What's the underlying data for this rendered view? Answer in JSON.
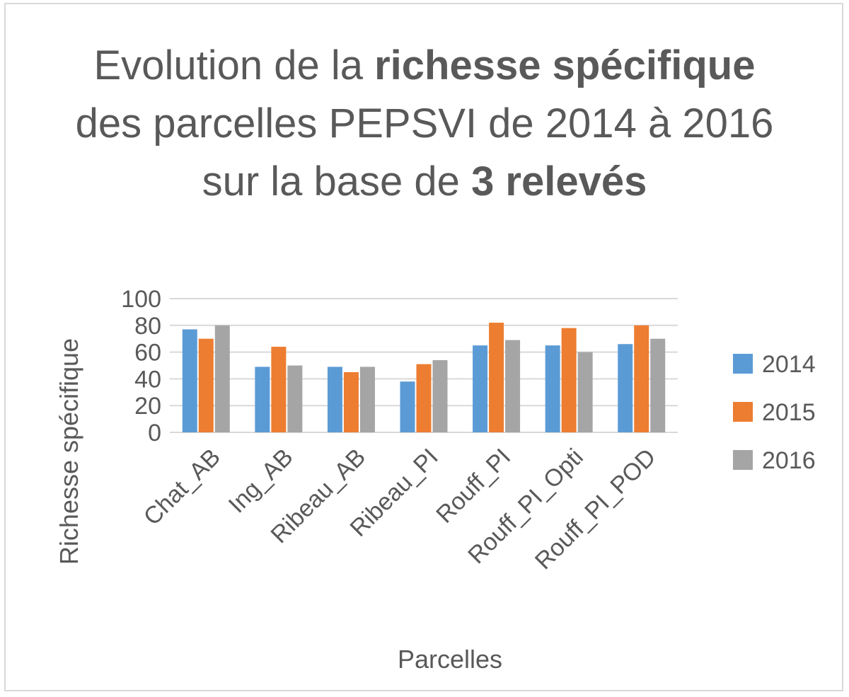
{
  "chart_data": {
    "type": "bar",
    "title_parts": [
      {
        "text": "Evolution de la ",
        "bold": false
      },
      {
        "text": "richesse spécifique",
        "bold": true
      },
      {
        "text": " des parcelles PEPSVI de 2014 à 2016 sur la base de ",
        "bold": false
      },
      {
        "text": "3 relevés",
        "bold": true
      }
    ],
    "xlabel": "Parcelles",
    "ylabel": "Richesse spécifique",
    "ylim": [
      0,
      100
    ],
    "yticks": [
      0,
      20,
      40,
      60,
      80,
      100
    ],
    "grid": true,
    "legend_position": "right",
    "categories": [
      "Chat_AB",
      "Ing_AB",
      "Ribeau_AB",
      "Ribeau_PI",
      "Rouff_PI",
      "Rouff_PI_Opti",
      "Rouff_PI_POD"
    ],
    "series": [
      {
        "name": "2014",
        "color": "#5b9bd5",
        "values": [
          77,
          49,
          49,
          38,
          65,
          65,
          66
        ]
      },
      {
        "name": "2015",
        "color": "#ed7d31",
        "values": [
          70,
          64,
          45,
          51,
          82,
          78,
          80
        ]
      },
      {
        "name": "2016",
        "color": "#a5a5a5",
        "values": [
          80,
          50,
          49,
          54,
          69,
          60,
          70
        ]
      }
    ]
  }
}
